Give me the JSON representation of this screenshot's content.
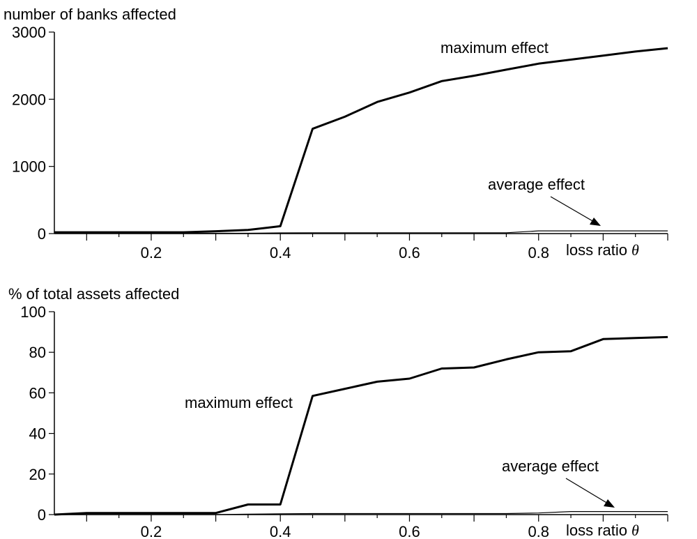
{
  "chart_data": [
    {
      "type": "line",
      "ylabel": "number of banks affected",
      "xlabel": "loss ratio",
      "xlabel_symbol": "θ",
      "xlim": [
        0.05,
        1.0
      ],
      "ylim": [
        0,
        3000
      ],
      "xticks": [
        0.2,
        0.4,
        0.6,
        0.8
      ],
      "xtick_labels": [
        "0.2",
        "0.4",
        "0.6",
        "0.8"
      ],
      "yticks": [
        0,
        1000,
        2000,
        3000
      ],
      "ytick_labels": [
        "0",
        "1000",
        "2000",
        "3000"
      ],
      "grid": false,
      "x": [
        0.05,
        0.1,
        0.15,
        0.2,
        0.25,
        0.3,
        0.35,
        0.4,
        0.45,
        0.5,
        0.55,
        0.6,
        0.65,
        0.7,
        0.75,
        0.8,
        0.85,
        0.9,
        0.95,
        1.0
      ],
      "series": [
        {
          "name": "maximum effect",
          "values": [
            20,
            20,
            20,
            20,
            20,
            35,
            55,
            110,
            1560,
            1740,
            1960,
            2100,
            2270,
            2350,
            2440,
            2530,
            2590,
            2650,
            2710,
            2760
          ]
        },
        {
          "name": "average effect",
          "values": [
            5,
            5,
            5,
            5,
            5,
            5,
            5,
            10,
            12,
            12,
            12,
            12,
            12,
            12,
            12,
            40,
            40,
            40,
            40,
            40
          ]
        }
      ],
      "annotations": [
        "maximum effect",
        "average effect"
      ]
    },
    {
      "type": "line",
      "ylabel": "% of total assets affected",
      "xlabel": "loss ratio",
      "xlabel_symbol": "θ",
      "xlim": [
        0.05,
        1.0
      ],
      "ylim": [
        0,
        100
      ],
      "xticks": [
        0.2,
        0.4,
        0.6,
        0.8
      ],
      "xtick_labels": [
        "0.2",
        "0.4",
        "0.6",
        "0.8"
      ],
      "yticks": [
        0,
        20,
        40,
        60,
        80,
        100
      ],
      "ytick_labels": [
        "0",
        "20",
        "40",
        "60",
        "80",
        "100"
      ],
      "grid": false,
      "x": [
        0.05,
        0.1,
        0.15,
        0.2,
        0.25,
        0.3,
        0.35,
        0.4,
        0.45,
        0.5,
        0.55,
        0.6,
        0.65,
        0.7,
        0.75,
        0.8,
        0.85,
        0.9,
        0.95,
        1.0
      ],
      "series": [
        {
          "name": "maximum effect",
          "values": [
            0,
            0.8,
            0.8,
            0.8,
            0.8,
            0.8,
            5,
            5,
            58.5,
            62,
            65.5,
            67,
            72,
            72.5,
            76.5,
            80,
            80.5,
            86.5,
            87,
            87.5
          ]
        },
        {
          "name": "average effect",
          "values": [
            0,
            0,
            0,
            0,
            0,
            0,
            0.2,
            0.4,
            0.5,
            0.5,
            0.5,
            0.5,
            0.5,
            0.5,
            0.5,
            0.8,
            1.5,
            1.5,
            1.5,
            1.5
          ]
        }
      ],
      "annotations": [
        "maximum effect",
        "average effect"
      ]
    }
  ]
}
